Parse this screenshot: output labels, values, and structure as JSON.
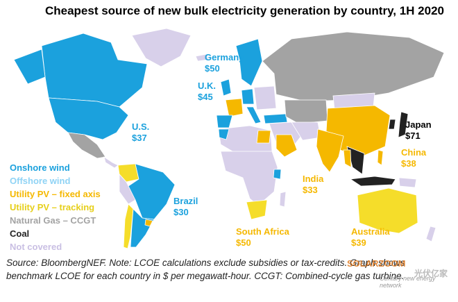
{
  "title": "Cheapest source of new bulk electricity generation by country, 1H 2020",
  "legend": [
    {
      "label": "Onshore wind",
      "color": "#1ba1dd"
    },
    {
      "label": "Offshore wind",
      "color": "#8fd3f5"
    },
    {
      "label": "Utility PV – fixed axis",
      "color": "#f5b800"
    },
    {
      "label": "Utility PV – tracking",
      "color": "#f5dd2a"
    },
    {
      "label": "Natural Gas – CCGT",
      "color": "#a3a3a3"
    },
    {
      "label": "Coal",
      "color": "#222222"
    },
    {
      "label": "Not covered",
      "color": "#d8d0ea"
    }
  ],
  "callouts": {
    "germany": {
      "name": "Germany",
      "value": "$50"
    },
    "uk": {
      "name": "U.K.",
      "value": "$45"
    },
    "us": {
      "name": "U.S.",
      "value": "$37"
    },
    "brazil": {
      "name": "Brazil",
      "value": "$30"
    },
    "japan": {
      "name": "Japan",
      "value": "$71"
    },
    "china": {
      "name": "China",
      "value": "$38"
    },
    "india": {
      "name": "India",
      "value": "$33"
    },
    "south_africa": {
      "name": "South Africa",
      "value": "$50"
    },
    "australia": {
      "name": "Australia",
      "value": "$39"
    }
  },
  "source": "Source: BloombergNEF. Note: LCOE calculations exclude subsidies or tax-credits. Graph shows benchmark LCOE for each country in $ per megawatt-hour. CCGT: Combined-cycle gas turbine.",
  "watermark": {
    "brand": "SOLARZOOM",
    "tagline": "Century new energy network",
    "cn": "光伏亿家"
  }
}
